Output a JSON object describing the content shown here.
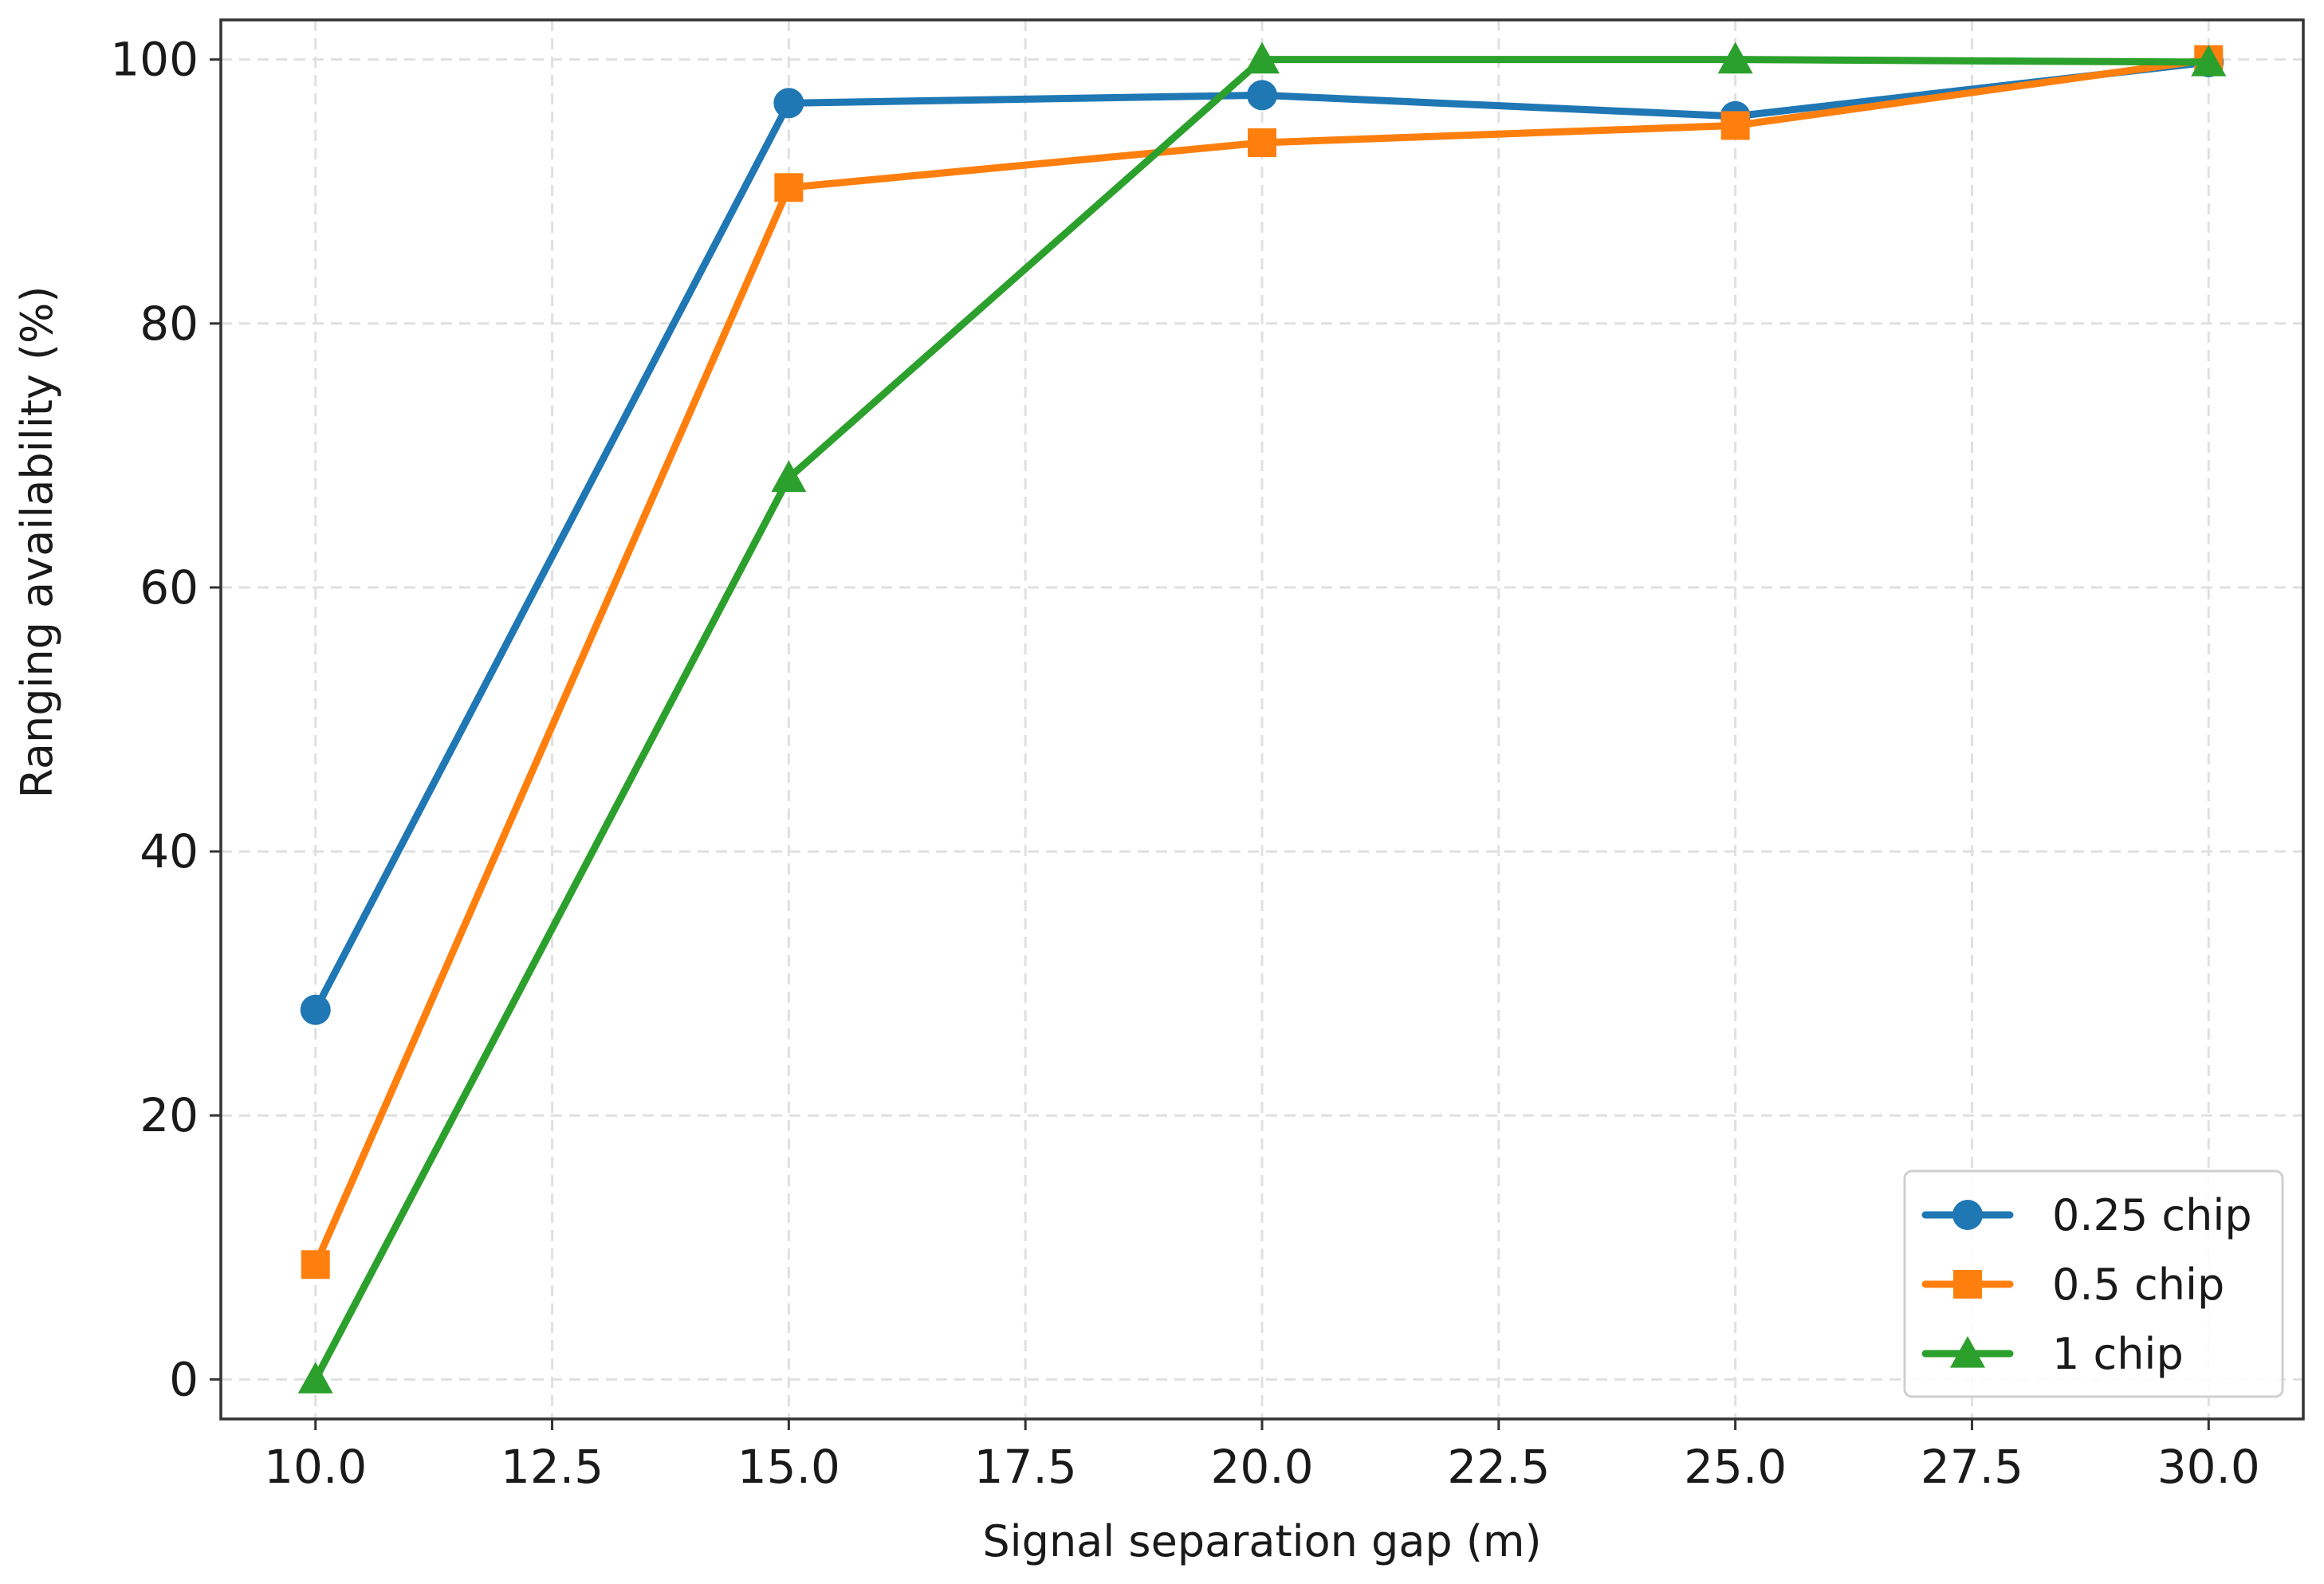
{
  "chart_data": {
    "type": "line",
    "xlabel": "Signal separation gap (m)",
    "ylabel": "Ranging availability (%)",
    "x": [
      10,
      15,
      20,
      25,
      30
    ],
    "xlim": [
      9,
      31
    ],
    "ylim": [
      -3,
      103
    ],
    "xticks": [
      10,
      12.5,
      15,
      17.5,
      20,
      22.5,
      25,
      27.5,
      30
    ],
    "xtick_labels": [
      "10.0",
      "12.5",
      "15.0",
      "17.5",
      "20.0",
      "22.5",
      "25.0",
      "27.5",
      "30.0"
    ],
    "yticks": [
      0,
      20,
      40,
      60,
      80,
      100
    ],
    "ytick_labels": [
      "0",
      "20",
      "40",
      "60",
      "80",
      "100"
    ],
    "grid": true,
    "legend_position": "bottom-right",
    "series": [
      {
        "name": "0.25 chip",
        "color": "#1f77b4",
        "marker": "circle",
        "values": [
          28.0,
          96.7,
          97.3,
          95.7,
          99.8
        ]
      },
      {
        "name": "0.5 chip",
        "color": "#ff7f0e",
        "marker": "square",
        "values": [
          8.7,
          90.3,
          93.7,
          95.0,
          100.0
        ]
      },
      {
        "name": "1 chip",
        "color": "#2ca02c",
        "marker": "triangle",
        "values": [
          0.0,
          68.3,
          100.0,
          100.0,
          99.8
        ]
      }
    ]
  }
}
